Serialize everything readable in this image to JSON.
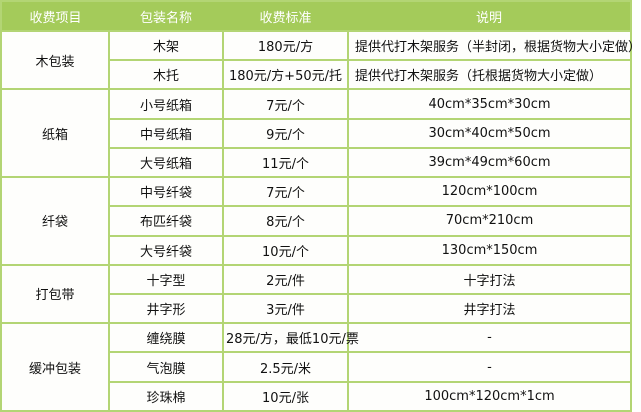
{
  "colors": {
    "header_bg": "#a4cb5a",
    "border": "#b3d574",
    "cell_bg": "#fefefc",
    "header_text": "#ffffff",
    "body_text": "#111111"
  },
  "table": {
    "headers": [
      "收费项目",
      "包装名称",
      "收费标准",
      "说明"
    ],
    "sections": [
      {
        "item": "木包装",
        "rows": [
          {
            "name": "木架",
            "price": "180元/方",
            "desc": "提供代打木架服务（半封闭，根据货物大小定做）",
            "desc_align": "left"
          },
          {
            "name": "木托",
            "price": "180元/方+50元/托",
            "desc": "提供代打木架服务（托根据货物大小定做）",
            "desc_align": "left"
          }
        ]
      },
      {
        "item": "纸箱",
        "rows": [
          {
            "name": "小号纸箱",
            "price": "7元/个",
            "desc": "40cm*35cm*30cm",
            "desc_align": "center"
          },
          {
            "name": "中号纸箱",
            "price": "9元/个",
            "desc": "30cm*40cm*50cm",
            "desc_align": "center"
          },
          {
            "name": "大号纸箱",
            "price": "11元/个",
            "desc": "39cm*49cm*60cm",
            "desc_align": "center"
          }
        ]
      },
      {
        "item": "纤袋",
        "rows": [
          {
            "name": "中号纤袋",
            "price": "7元/个",
            "desc": "120cm*100cm",
            "desc_align": "center"
          },
          {
            "name": "布匹纤袋",
            "price": "8元/个",
            "desc": "70cm*210cm",
            "desc_align": "center"
          },
          {
            "name": "大号纤袋",
            "price": "10元/个",
            "desc": "130cm*150cm",
            "desc_align": "center"
          }
        ]
      },
      {
        "item": "打包带",
        "rows": [
          {
            "name": "十字型",
            "price": "2元/件",
            "desc": "十字打法",
            "desc_align": "center"
          },
          {
            "name": "井字形",
            "price": "3元/件",
            "desc": "井字打法",
            "desc_align": "center"
          }
        ]
      },
      {
        "item": "缓冲包装",
        "rows": [
          {
            "name": "缠绕膜",
            "price": "28元/方，最低10元/票",
            "desc": "-",
            "desc_align": "center"
          },
          {
            "name": "气泡膜",
            "price": "2.5元/米",
            "desc": "-",
            "desc_align": "center"
          },
          {
            "name": "珍珠棉",
            "price": "10元/张",
            "desc": "100cm*120cm*1cm",
            "desc_align": "center"
          }
        ]
      }
    ]
  }
}
